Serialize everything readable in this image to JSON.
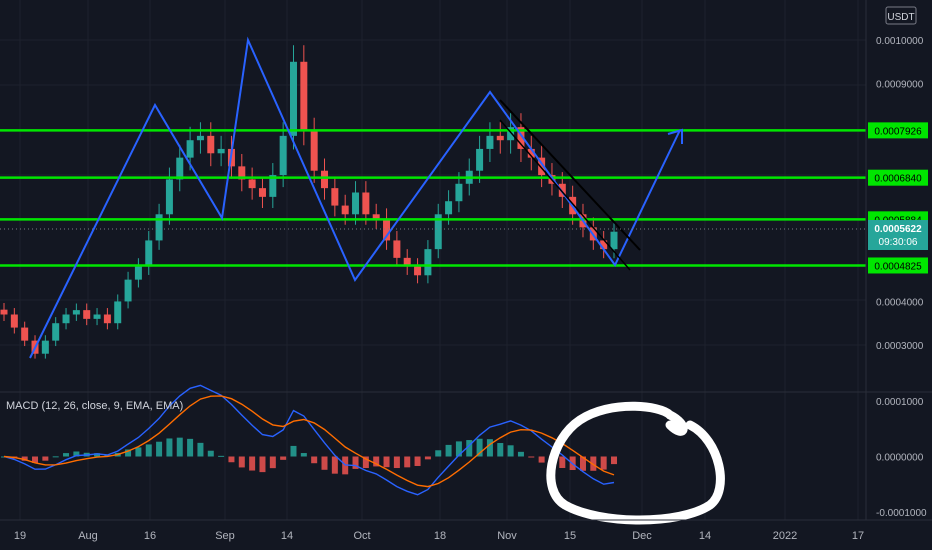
{
  "currency_badge": "USDT",
  "price_axis": {
    "ticks": [
      "0.0010000",
      "0.0009000",
      "0.0004000",
      "0.0003000"
    ],
    "levels": [
      {
        "label": "0.0007926",
        "value": 0.0007926
      },
      {
        "label": "0.0006840",
        "value": 0.000684
      },
      {
        "label": "0.0005884",
        "value": 0.0005884
      },
      {
        "label": "0.0004825",
        "value": 0.0004825
      }
    ],
    "last_price": "0.0005622",
    "countdown": "09:30:06",
    "colors": {
      "level": "#00e600",
      "last": "#26a69a"
    }
  },
  "macd": {
    "label": "MACD (12, 26, close, 9, EMA, EMA)",
    "ticks": [
      "0.0001000",
      "0.0000000",
      "-0.0001000"
    ],
    "colors": {
      "macd_line": "#2962ff",
      "signal_line": "#ff6d00",
      "hist_pos": "#26a69a",
      "hist_neg": "#ef5350"
    }
  },
  "time_axis": [
    "19",
    "Aug",
    "16",
    "Sep",
    "14",
    "Oct",
    "18",
    "Nov",
    "15",
    "Dec",
    "14",
    "2022",
    "17"
  ],
  "chart_data": {
    "type": "candlestick",
    "y_range": [
      0.00025,
      0.00106
    ],
    "y_scale": "linear",
    "grid": true,
    "close_series": [
      0.00037,
      0.00034,
      0.00031,
      0.00028,
      0.00031,
      0.00035,
      0.00037,
      0.00038,
      0.00036,
      0.00037,
      0.00035,
      0.0004,
      0.00045,
      0.00048,
      0.00054,
      0.0006,
      0.00068,
      0.00073,
      0.00077,
      0.00078,
      0.00074,
      0.00075,
      0.00071,
      0.00068,
      0.00066,
      0.00064,
      0.00069,
      0.00078,
      0.00095,
      0.00079,
      0.0007,
      0.00066,
      0.00062,
      0.0006,
      0.00065,
      0.0006,
      0.00059,
      0.00054,
      0.0005,
      0.00048,
      0.00046,
      0.00052,
      0.0006,
      0.00063,
      0.00067,
      0.0007,
      0.00075,
      0.00078,
      0.00077,
      0.0008,
      0.00075,
      0.00073,
      0.00069,
      0.00067,
      0.00064,
      0.0006,
      0.00057,
      0.00054,
      0.00052,
      0.00056
    ],
    "levels": [
      0.0007926,
      0.000684,
      0.0005884,
      0.0004825
    ],
    "macd_range": [
      -0.000105,
      0.000105
    ]
  },
  "colors": {
    "bg": "#131722",
    "up": "#26a69a",
    "down": "#ef5350",
    "drawing": "#2962ff",
    "level_line": "#00e600"
  }
}
